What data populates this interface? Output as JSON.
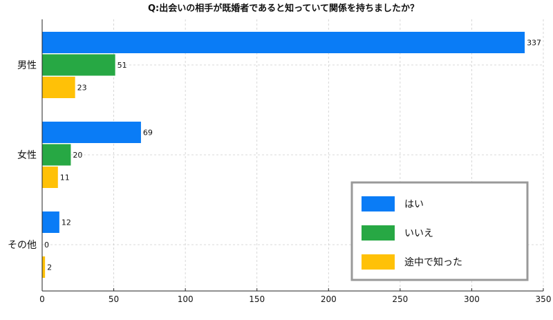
{
  "chart_data": {
    "type": "bar",
    "orientation": "horizontal",
    "title": "Q:出会いの相手が既婚者であると知っていて関係を持ちましたか？",
    "categories": [
      "男性",
      "女性",
      "その他"
    ],
    "series": [
      {
        "name": "はい",
        "values": [
          337,
          69,
          12
        ],
        "color": "#0a7cf6"
      },
      {
        "name": "いいえ",
        "values": [
          51,
          20,
          0
        ],
        "color": "#27a844"
      },
      {
        "name": "途中で知った",
        "values": [
          23,
          11,
          2
        ],
        "color": "#ffc107"
      }
    ],
    "xlim": [
      0,
      350
    ],
    "xticks": [
      0,
      50,
      100,
      150,
      200,
      250,
      300,
      350
    ],
    "grid": true,
    "legend_position": "bottom-right"
  }
}
